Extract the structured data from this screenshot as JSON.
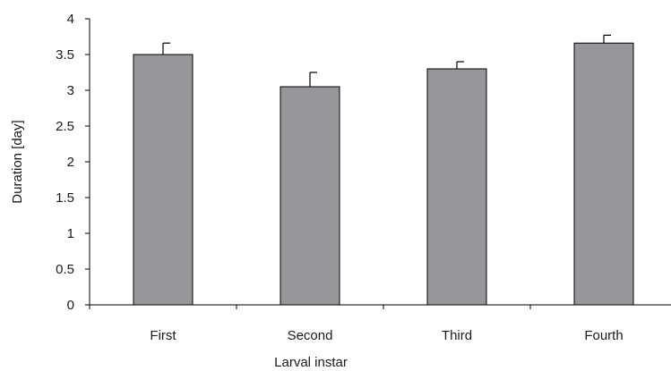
{
  "chart_data": {
    "type": "bar",
    "title": "",
    "xlabel": "Larval instar",
    "ylabel": "Duration [day]",
    "categories": [
      "First",
      "Second",
      "Third",
      "Fourth"
    ],
    "series": [
      {
        "values": [
          3.5,
          3.05,
          3.3,
          3.66
        ],
        "errors": [
          0.16,
          0.2,
          0.1,
          0.11
        ]
      }
    ],
    "ylim": [
      0,
      4
    ],
    "yticks": [
      "0",
      "0.5",
      "1",
      "1.5",
      "2",
      "2.5",
      "3",
      "3.5",
      "4"
    ],
    "grid": false,
    "legend": "none",
    "colors": {
      "bar_fill": "#97969b",
      "bar_stroke": "#000000",
      "axis": "#000000",
      "text": "#1a1a1a"
    }
  }
}
